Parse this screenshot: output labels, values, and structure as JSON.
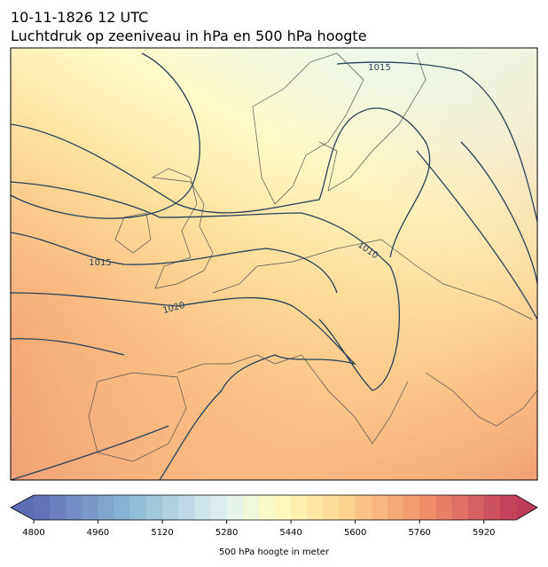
{
  "header": {
    "date": "10-11-1826 12 UTC",
    "title": "Luchtdruk op zeeniveau in hPa en 500 hPa hoogte"
  },
  "contour_labels": [
    1015,
    1015,
    1010,
    1020
  ],
  "colorbar": {
    "range": [
      4800,
      6000
    ],
    "step": 40,
    "ticks": [
      4800,
      4960,
      5120,
      5280,
      5440,
      5600,
      5760,
      5920
    ],
    "label": "500 hPa hoogte in meter"
  }
}
